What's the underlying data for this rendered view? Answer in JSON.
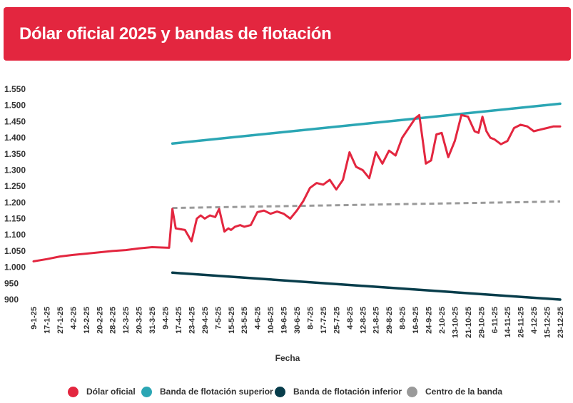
{
  "chart_data": {
    "type": "line",
    "title": "Dólar oficial 2025 y bandas de flotación",
    "xlabel": "Fecha",
    "ylabel": "",
    "ylim": [
      900,
      1550
    ],
    "yticks": [
      900,
      950,
      1000,
      1050,
      1100,
      1150,
      1200,
      1250,
      1300,
      1350,
      1400,
      1450,
      1500,
      1550
    ],
    "ytick_labels": [
      "900",
      "950",
      "1.000",
      "1.050",
      "1.100",
      "1.150",
      "1.200",
      "1.250",
      "1.300",
      "1.350",
      "1.400",
      "1.450",
      "1.500",
      "1.550"
    ],
    "categories": [
      "9-1-25",
      "17-1-25",
      "27-1-25",
      "4-2-25",
      "12-2-25",
      "20-2-25",
      "28-2-25",
      "12-3-25",
      "20-3-25",
      "31-3-25",
      "9-4-25",
      "17-4-25",
      "23-4-25",
      "29-4-25",
      "7-5-25",
      "15-5-25",
      "23-5-25",
      "4-6-25",
      "10-6-25",
      "19-6-25",
      "30-6-25",
      "8-7-25",
      "17-7-25",
      "25-7-25",
      "4-8-25",
      "12-8-25",
      "21-8-25",
      "29-8-25",
      "8-9-25",
      "16-9-25",
      "24-9-25",
      "2-10-25",
      "13-10-25",
      "21-10-25",
      "29-10-25",
      "6-11-25",
      "14-11-25",
      "26-11-25",
      "4-12-25",
      "15-12-25",
      "23-12-25"
    ],
    "x_range": [
      0,
      40
    ],
    "grid": false,
    "legend_position": "bottom",
    "series": [
      {
        "name": "Dólar oficial",
        "color": "#e3263f",
        "x": [
          0,
          1,
          2,
          3,
          4,
          5,
          6,
          7,
          8,
          9,
          10.3,
          10.55,
          10.8,
          11.5,
          12.0,
          12.4,
          12.7,
          13.0,
          13.4,
          13.8,
          14.1,
          14.5,
          14.8,
          15.0,
          15.3,
          15.7,
          16.0,
          16.5,
          17.0,
          17.5,
          18.0,
          18.5,
          19.0,
          19.5,
          20.0,
          20.5,
          21.0,
          21.5,
          22.0,
          22.5,
          23.0,
          23.5,
          24.0,
          24.5,
          25.0,
          25.5,
          26.0,
          26.5,
          27.0,
          27.5,
          28.0,
          28.5,
          29.0,
          29.3,
          29.5,
          29.8,
          30.2,
          30.6,
          31.0,
          31.5,
          32.0,
          32.5,
          33.0,
          33.5,
          33.8,
          34.1,
          34.4,
          34.7,
          35.0,
          35.5,
          36.0,
          36.5,
          37.0,
          37.5,
          38.0,
          38.5,
          39.0,
          39.5,
          40.0
        ],
        "values": [
          1018,
          1025,
          1033,
          1038,
          1042,
          1046,
          1050,
          1053,
          1058,
          1062,
          1060,
          1180,
          1120,
          1115,
          1080,
          1150,
          1160,
          1150,
          1160,
          1155,
          1180,
          1110,
          1120,
          1115,
          1125,
          1130,
          1125,
          1130,
          1170,
          1175,
          1165,
          1172,
          1165,
          1150,
          1175,
          1205,
          1245,
          1260,
          1255,
          1270,
          1240,
          1270,
          1355,
          1310,
          1300,
          1275,
          1355,
          1320,
          1360,
          1345,
          1400,
          1430,
          1460,
          1470,
          1410,
          1320,
          1330,
          1410,
          1415,
          1340,
          1390,
          1470,
          1465,
          1420,
          1415,
          1465,
          1420,
          1400,
          1395,
          1380,
          1390,
          1430,
          1440,
          1435,
          1420,
          1425,
          1430,
          1435,
          1435
        ]
      },
      {
        "name": "Banda de flotación superior",
        "color": "#2ba6b4",
        "x": [
          10.55,
          40
        ],
        "values": [
          1382,
          1505
        ]
      },
      {
        "name": "Banda de flotación inferior",
        "color": "#083d4b",
        "x": [
          10.55,
          40
        ],
        "values": [
          983,
          900
        ]
      },
      {
        "name": "Centro de la banda",
        "color": "#9a9a9a",
        "x": [
          10.55,
          40
        ],
        "values": [
          1183,
          1203
        ]
      }
    ]
  },
  "colors": {
    "title_bar": "#e3263f",
    "title_text": "#ffffff"
  }
}
